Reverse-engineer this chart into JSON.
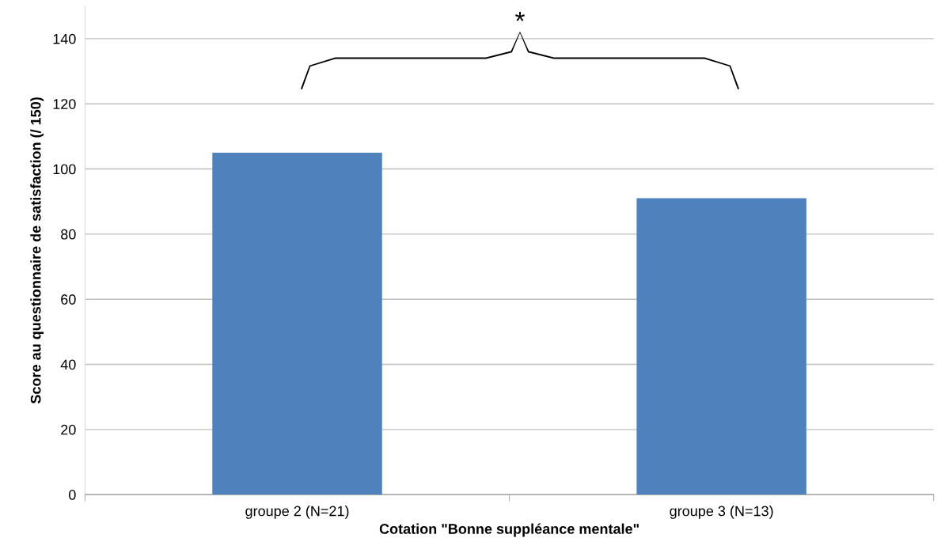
{
  "chart_data": {
    "type": "bar",
    "xlabel": "Cotation \"Bonne suppléance mentale\"",
    "ylabel": "Score au questionnaire de satisfaction (/ 150)",
    "categories": [
      "groupe 2 (N=21)",
      "groupe 3 (N=13)"
    ],
    "values": [
      105,
      91
    ],
    "color": "#4f81bd",
    "ylim": [
      0,
      150
    ],
    "yticks": [
      0,
      20,
      40,
      60,
      80,
      100,
      120,
      140
    ],
    "grid": "y",
    "annotations": [
      "*"
    ]
  }
}
